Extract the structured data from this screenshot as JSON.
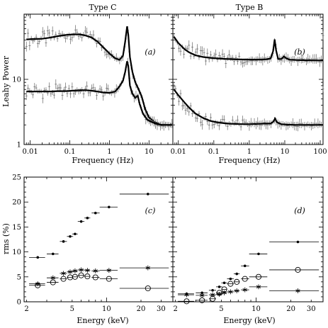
{
  "panel_titles": [
    "Type C",
    "Type B"
  ],
  "panel_labels": [
    "(a)",
    "(b)",
    "(c)",
    "(d)"
  ],
  "chart_data": [
    {
      "type": "line",
      "panel": "(a)",
      "title": "Type C",
      "xlabel": "Frequency (Hz)",
      "ylabel": "Leahy Power",
      "xscale": "log",
      "yscale": "log",
      "xlim": [
        0.007,
        40
      ],
      "ylim": [
        1,
        100
      ],
      "x_ticklabels": [
        "0.01",
        "0.1",
        "1",
        "10"
      ],
      "y_ticklabels": [
        "1",
        "10"
      ],
      "series": [
        {
          "x": [
            0.008,
            0.012,
            0.02,
            0.03,
            0.05,
            0.08,
            0.12,
            0.18,
            0.25,
            0.35,
            0.5,
            0.7,
            1.0,
            1.4,
            1.8,
            2.2,
            2.5,
            2.8,
            3.0,
            3.3,
            3.8,
            4.5,
            5.5,
            6.5,
            8,
            10,
            14,
            20,
            30,
            38
          ],
          "y": [
            41,
            41.5,
            42,
            43.5,
            46,
            48,
            49,
            49,
            47,
            44,
            38,
            31,
            25,
            21,
            20,
            23,
            38,
            65,
            48,
            22,
            13,
            9,
            7,
            5.5,
            3.5,
            2.6,
            2.2,
            2.0,
            2.0,
            2.0
          ]
        },
        {
          "x": [
            0.008,
            0.012,
            0.02,
            0.03,
            0.05,
            0.08,
            0.12,
            0.18,
            0.25,
            0.35,
            0.5,
            0.7,
            1.0,
            1.4,
            1.8,
            2.2,
            2.5,
            2.8,
            3.0,
            3.3,
            3.8,
            4.5,
            5.2,
            5.8,
            7,
            9,
            12,
            16,
            22,
            30,
            38
          ],
          "y": [
            6.5,
            6.5,
            6.5,
            6.5,
            6.6,
            6.6,
            6.7,
            6.8,
            6.8,
            6.7,
            6.5,
            6.3,
            6.2,
            6.5,
            7.8,
            9.5,
            13,
            19,
            16,
            8,
            6,
            5.2,
            5.6,
            4.2,
            3.0,
            2.4,
            2.2,
            2.05,
            2.0,
            2.0,
            2.0
          ]
        }
      ]
    },
    {
      "type": "line",
      "panel": "(b)",
      "title": "Type B",
      "xlabel": "Frequency (Hz)",
      "xscale": "log",
      "yscale": "log",
      "xlim": [
        0.007,
        120
      ],
      "ylim": [
        1,
        100
      ],
      "x_ticklabels": [
        "0.01",
        "0.1",
        "1",
        "10",
        "100"
      ],
      "series": [
        {
          "x": [
            0.0075,
            0.01,
            0.015,
            0.02,
            0.03,
            0.05,
            0.08,
            0.12,
            0.2,
            0.3,
            0.5,
            1,
            2,
            3,
            4,
            4.7,
            5.2,
            5.7,
            6.5,
            8,
            9.5,
            11,
            14,
            20,
            40,
            80,
            120
          ],
          "y": [
            45,
            36,
            29,
            26,
            23.5,
            22,
            21.4,
            21,
            20.6,
            20.4,
            20.2,
            20.1,
            20.1,
            20.3,
            21,
            27,
            41,
            28,
            20.5,
            20.5,
            22.5,
            21,
            20,
            19.8,
            19.6,
            19.5,
            19.5
          ]
        },
        {
          "x": [
            0.0075,
            0.01,
            0.015,
            0.02,
            0.03,
            0.05,
            0.08,
            0.12,
            0.2,
            0.3,
            0.5,
            1,
            2,
            3,
            4,
            4.8,
            5.3,
            6,
            8,
            12,
            20,
            40,
            80,
            120
          ],
          "y": [
            7.0,
            5.7,
            4.4,
            3.7,
            3.0,
            2.55,
            2.3,
            2.2,
            2.12,
            2.08,
            2.06,
            2.05,
            2.08,
            2.1,
            2.1,
            2.25,
            2.5,
            2.2,
            2.05,
            2.02,
            2.0,
            2.0,
            2.0,
            2.0
          ]
        }
      ]
    },
    {
      "type": "scatter",
      "panel": "(c)",
      "xlabel": "Energy (keV)",
      "ylabel": "rms (%)",
      "xscale": "log",
      "xlim": [
        1.9,
        38
      ],
      "ylim": [
        0,
        25
      ],
      "x_ticklabels": [
        "2",
        "5",
        "10",
        "20",
        "30"
      ],
      "y_ticklabels": [
        "0",
        "5",
        "10",
        "15",
        "20",
        "25"
      ],
      "series": [
        {
          "marker": "dot",
          "x": [
            2.5,
            3.4,
            4.2,
            4.8,
            5.3,
            6.0,
            6.8,
            8.0,
            10.5,
            23.0
          ],
          "xerr_low": [
            2.1,
            3.0,
            3.9,
            4.5,
            5.0,
            5.6,
            6.4,
            7.4,
            8.7,
            13.0
          ],
          "xerr_high": [
            2.9,
            3.8,
            4.5,
            5.1,
            5.6,
            6.4,
            7.2,
            8.7,
            12.5,
            35.0
          ],
          "y": [
            8.9,
            9.6,
            12.1,
            13.1,
            13.6,
            16.1,
            16.8,
            17.8,
            19.0,
            21.6
          ]
        },
        {
          "marker": "star",
          "x": [
            2.5,
            3.4,
            4.2,
            4.8,
            5.3,
            6.0,
            6.8,
            8.0,
            10.5,
            23.0
          ],
          "xerr_low": [
            2.1,
            3.0,
            3.9,
            4.5,
            5.0,
            5.6,
            6.4,
            7.4,
            8.7,
            13.0
          ],
          "xerr_high": [
            2.9,
            3.8,
            4.5,
            5.1,
            5.6,
            6.4,
            7.2,
            8.7,
            12.5,
            35.0
          ],
          "y": [
            3.6,
            4.8,
            5.7,
            6.0,
            6.2,
            6.4,
            6.3,
            6.2,
            6.3,
            6.8
          ]
        },
        {
          "marker": "circle",
          "x": [
            2.5,
            3.4,
            4.2,
            4.8,
            5.3,
            6.0,
            6.8,
            8.0,
            10.5,
            23.0
          ],
          "xerr_low": [
            2.1,
            3.0,
            3.9,
            4.5,
            5.0,
            5.6,
            6.4,
            7.4,
            8.7,
            13.0
          ],
          "xerr_high": [
            2.9,
            3.8,
            4.5,
            5.1,
            5.6,
            6.4,
            7.2,
            8.7,
            12.5,
            35.0
          ],
          "y": [
            3.3,
            3.9,
            4.6,
            4.9,
            5.0,
            5.3,
            5.1,
            4.9,
            4.6,
            2.7
          ]
        }
      ]
    },
    {
      "type": "scatter",
      "panel": "(d)",
      "xlabel": "Energy (keV)",
      "xscale": "log",
      "xlim": [
        1.9,
        38
      ],
      "ylim": [
        0,
        25
      ],
      "x_ticklabels": [
        "2",
        "5",
        "10",
        "20",
        "30"
      ],
      "series": [
        {
          "marker": "dot",
          "x": [
            2.5,
            3.4,
            4.2,
            4.8,
            5.3,
            6.0,
            6.8,
            8.0,
            10.5,
            23.0
          ],
          "xerr_low": [
            2.1,
            3.0,
            3.9,
            4.5,
            5.0,
            5.6,
            6.4,
            7.4,
            8.7,
            13.0
          ],
          "xerr_high": [
            2.9,
            3.8,
            4.5,
            5.1,
            5.6,
            6.4,
            7.2,
            8.7,
            12.5,
            35.0
          ],
          "y": [
            1.6,
            1.8,
            2.3,
            3.0,
            3.8,
            4.6,
            5.6,
            7.2,
            9.6,
            12.0
          ]
        },
        {
          "marker": "circle",
          "x": [
            2.5,
            3.4,
            4.2,
            4.8,
            5.3,
            6.0,
            6.8,
            8.0,
            10.5,
            23.0
          ],
          "xerr_low": [
            2.1,
            3.0,
            3.9,
            4.5,
            5.0,
            5.6,
            6.4,
            7.4,
            8.7,
            13.0
          ],
          "xerr_high": [
            2.9,
            3.8,
            4.5,
            5.1,
            5.6,
            6.4,
            7.2,
            8.7,
            12.5,
            35.0
          ],
          "y": [
            0.1,
            0.3,
            0.6,
            1.8,
            2.5,
            3.6,
            4.0,
            4.6,
            5.0,
            6.4
          ]
        },
        {
          "marker": "star",
          "x": [
            2.5,
            3.4,
            4.2,
            4.8,
            5.3,
            6.0,
            6.8,
            8.0,
            10.5,
            23.0
          ],
          "xerr_low": [
            2.1,
            3.0,
            3.9,
            4.5,
            5.0,
            5.6,
            6.4,
            7.4,
            8.7,
            13.0
          ],
          "xerr_high": [
            2.9,
            3.8,
            4.5,
            5.1,
            5.6,
            6.4,
            7.2,
            8.7,
            12.5,
            35.0
          ],
          "y": [
            1.4,
            1.3,
            1.4,
            1.5,
            1.8,
            2.0,
            2.2,
            2.4,
            3.0,
            2.2
          ]
        }
      ]
    }
  ]
}
